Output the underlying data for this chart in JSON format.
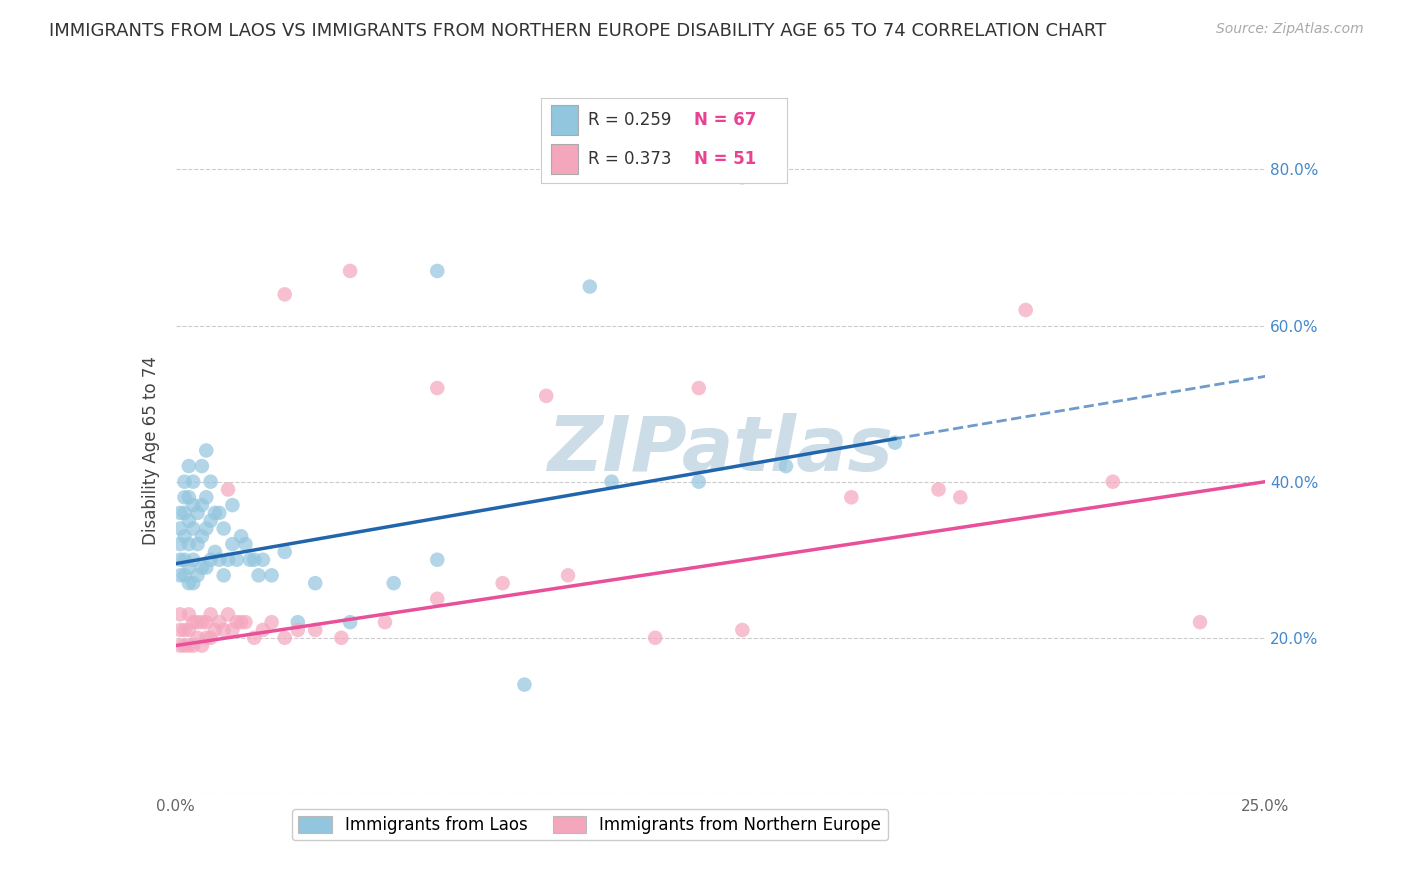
{
  "title": "IMMIGRANTS FROM LAOS VS IMMIGRANTS FROM NORTHERN EUROPE DISABILITY AGE 65 TO 74 CORRELATION CHART",
  "source": "Source: ZipAtlas.com",
  "ylabel": "Disability Age 65 to 74",
  "xlim": [
    0.0,
    0.25
  ],
  "ylim": [
    0.0,
    0.88
  ],
  "legend1_label": "Immigrants from Laos",
  "legend2_label": "Immigrants from Northern Europe",
  "R1": 0.259,
  "N1": 67,
  "R2": 0.373,
  "N2": 51,
  "color1": "#92c5de",
  "color2": "#f4a6bd",
  "line1_color": "#2166ac",
  "line2_color": "#e8509a",
  "watermark": "ZIPatlas",
  "watermark_color": "#ccdde8",
  "blue_x": [
    0.001,
    0.001,
    0.001,
    0.001,
    0.001,
    0.002,
    0.002,
    0.002,
    0.002,
    0.002,
    0.002,
    0.003,
    0.003,
    0.003,
    0.003,
    0.003,
    0.003,
    0.004,
    0.004,
    0.004,
    0.004,
    0.004,
    0.005,
    0.005,
    0.005,
    0.006,
    0.006,
    0.006,
    0.006,
    0.007,
    0.007,
    0.007,
    0.007,
    0.008,
    0.008,
    0.008,
    0.009,
    0.009,
    0.01,
    0.01,
    0.011,
    0.011,
    0.012,
    0.013,
    0.013,
    0.014,
    0.015,
    0.016,
    0.017,
    0.018,
    0.019,
    0.02,
    0.022,
    0.025,
    0.028,
    0.032,
    0.04,
    0.05,
    0.06,
    0.08,
    0.1,
    0.12,
    0.14,
    0.165,
    0.13,
    0.095,
    0.06
  ],
  "blue_y": [
    0.28,
    0.3,
    0.32,
    0.34,
    0.36,
    0.28,
    0.3,
    0.33,
    0.36,
    0.38,
    0.4,
    0.27,
    0.29,
    0.32,
    0.35,
    0.38,
    0.42,
    0.27,
    0.3,
    0.34,
    0.37,
    0.4,
    0.28,
    0.32,
    0.36,
    0.29,
    0.33,
    0.37,
    0.42,
    0.29,
    0.34,
    0.38,
    0.44,
    0.3,
    0.35,
    0.4,
    0.31,
    0.36,
    0.3,
    0.36,
    0.28,
    0.34,
    0.3,
    0.32,
    0.37,
    0.3,
    0.33,
    0.32,
    0.3,
    0.3,
    0.28,
    0.3,
    0.28,
    0.31,
    0.22,
    0.27,
    0.22,
    0.27,
    0.3,
    0.14,
    0.4,
    0.4,
    0.42,
    0.45,
    0.79,
    0.65,
    0.67
  ],
  "pink_x": [
    0.001,
    0.001,
    0.001,
    0.002,
    0.002,
    0.003,
    0.003,
    0.003,
    0.004,
    0.004,
    0.005,
    0.005,
    0.006,
    0.006,
    0.007,
    0.007,
    0.008,
    0.008,
    0.009,
    0.01,
    0.011,
    0.012,
    0.013,
    0.014,
    0.015,
    0.016,
    0.018,
    0.02,
    0.022,
    0.025,
    0.028,
    0.032,
    0.038,
    0.048,
    0.06,
    0.075,
    0.09,
    0.11,
    0.13,
    0.155,
    0.175,
    0.195,
    0.215,
    0.235,
    0.012,
    0.025,
    0.04,
    0.06,
    0.085,
    0.12,
    0.18
  ],
  "pink_y": [
    0.19,
    0.21,
    0.23,
    0.19,
    0.21,
    0.19,
    0.21,
    0.23,
    0.19,
    0.22,
    0.2,
    0.22,
    0.19,
    0.22,
    0.2,
    0.22,
    0.2,
    0.23,
    0.21,
    0.22,
    0.21,
    0.23,
    0.21,
    0.22,
    0.22,
    0.22,
    0.2,
    0.21,
    0.22,
    0.2,
    0.21,
    0.21,
    0.2,
    0.22,
    0.25,
    0.27,
    0.28,
    0.2,
    0.21,
    0.38,
    0.39,
    0.62,
    0.4,
    0.22,
    0.39,
    0.64,
    0.67,
    0.52,
    0.51,
    0.52,
    0.38
  ],
  "line1_x0": 0.0,
  "line1_y0": 0.295,
  "line1_x1": 0.165,
  "line1_y1": 0.455,
  "line1_x2": 0.25,
  "line1_y2": 0.535,
  "line2_x0": 0.0,
  "line2_y0": 0.19,
  "line2_x1": 0.25,
  "line2_y1": 0.4
}
